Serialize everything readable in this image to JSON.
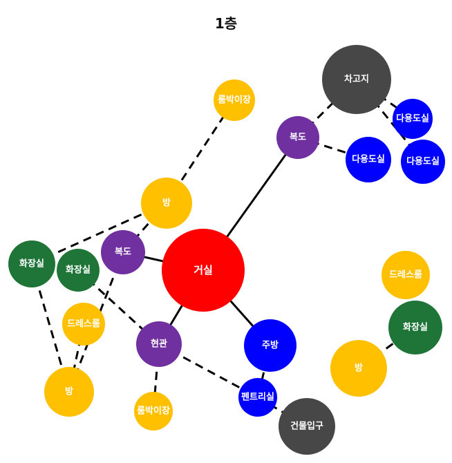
{
  "title": "1층",
  "colors": {
    "living": "#ff0000",
    "corridor": "#7030a0",
    "room": "#ffc000",
    "bathroom": "#1e7537",
    "service": "#0000ff",
    "garage": "#474747"
  },
  "nodes": [
    {
      "id": "garage",
      "label": "차고지",
      "type": "garage"
    },
    {
      "id": "utility1",
      "label": "다용도실",
      "type": "service"
    },
    {
      "id": "utility2",
      "label": "다용도실",
      "type": "service"
    },
    {
      "id": "utility3",
      "label": "다용도실",
      "type": "service"
    },
    {
      "id": "hall-top",
      "label": "복도",
      "type": "corridor"
    },
    {
      "id": "shoe-storage-top",
      "label": "룸박이장",
      "type": "room"
    },
    {
      "id": "room-a",
      "label": "방",
      "type": "room"
    },
    {
      "id": "hall-left",
      "label": "복도",
      "type": "corridor"
    },
    {
      "id": "living-room",
      "label": "거실",
      "type": "living"
    },
    {
      "id": "bath-far-left",
      "label": "화장실",
      "type": "bathroom"
    },
    {
      "id": "bath-left",
      "label": "화장실",
      "type": "bathroom"
    },
    {
      "id": "dress-left",
      "label": "드레스룸",
      "type": "room"
    },
    {
      "id": "room-b",
      "label": "방",
      "type": "room"
    },
    {
      "id": "entrance",
      "label": "현관",
      "type": "corridor"
    },
    {
      "id": "shoe-storage-bottom",
      "label": "룸박이장",
      "type": "room"
    },
    {
      "id": "kitchen",
      "label": "주방",
      "type": "service"
    },
    {
      "id": "pantry",
      "label": "펜트리실",
      "type": "service"
    },
    {
      "id": "building-entrance",
      "label": "건물입구",
      "type": "garage"
    },
    {
      "id": "dress-right",
      "label": "드레스룸",
      "type": "room"
    },
    {
      "id": "bath-right",
      "label": "화장실",
      "type": "bathroom"
    },
    {
      "id": "room-c",
      "label": "방",
      "type": "room"
    }
  ],
  "edges": [
    {
      "from": "living-room",
      "to": "hall-top",
      "style": "solid"
    },
    {
      "from": "living-room",
      "to": "hall-left",
      "style": "solid"
    },
    {
      "from": "living-room",
      "to": "entrance",
      "style": "solid"
    },
    {
      "from": "living-room",
      "to": "kitchen",
      "style": "solid"
    },
    {
      "from": "hall-top",
      "to": "garage",
      "style": "dashed"
    },
    {
      "from": "hall-top",
      "to": "utility2",
      "style": "dashed"
    },
    {
      "from": "garage",
      "to": "utility1",
      "style": "dashed"
    },
    {
      "from": "garage",
      "to": "utility3",
      "style": "dashed"
    },
    {
      "from": "room-a",
      "to": "shoe-storage-top",
      "style": "dashed"
    },
    {
      "from": "room-a",
      "to": "hall-left",
      "style": "dashed"
    },
    {
      "from": "room-a",
      "to": "bath-far-left",
      "style": "dashed"
    },
    {
      "from": "hall-left",
      "to": "room-b",
      "style": "dashed"
    },
    {
      "from": "bath-far-left",
      "to": "room-b",
      "style": "dashed"
    },
    {
      "from": "bath-left",
      "to": "entrance",
      "style": "dashed"
    },
    {
      "from": "dress-left",
      "to": "room-b",
      "style": "dashed"
    },
    {
      "from": "entrance",
      "to": "shoe-storage-bottom",
      "style": "dashed"
    },
    {
      "from": "entrance",
      "to": "pantry",
      "style": "dashed"
    },
    {
      "from": "kitchen",
      "to": "pantry",
      "style": "dashed"
    },
    {
      "from": "pantry",
      "to": "building-entrance",
      "style": "dashed"
    },
    {
      "from": "bath-right",
      "to": "room-c",
      "style": "dashed"
    }
  ]
}
